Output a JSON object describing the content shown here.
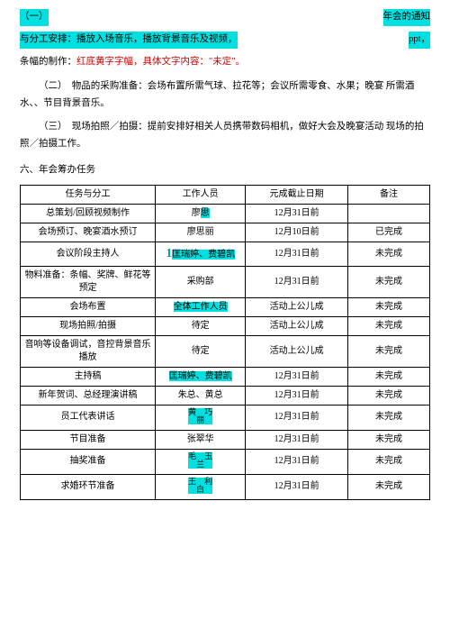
{
  "header": {
    "left": "（一）",
    "right": "年会的通知"
  },
  "line2": {
    "left": "与分工安排：播放入场音乐，播放背景音乐及视频，",
    "right": "ppt，"
  },
  "banner_line_a": "条幅的制作：",
  "banner_line_b": "红底黄字字幅，具体文字内容：\"未定\"。",
  "para2": "（二）　物品的采购准备：会场布置所需气球、拉花等；会议所需零食、水果；晚宴 所需酒水、、节目背景音乐。",
  "para3": "（三）　现场拍照／拍摄：提前安排好相关人员携带数码相机，做好大会及晚宴活动 现场的拍照／拍摄工作。",
  "section6": "六、年会筹办任务",
  "table": {
    "headers": [
      "任务与分工",
      "工作人员",
      "元成截止日期",
      "备注"
    ],
    "rows": [
      {
        "c1": "总策划/回顾视频制作",
        "c2_pre": "廖",
        "c2_hl": "思",
        "c3": "12月31日前",
        "c4": ""
      },
      {
        "c1": "会场预订、晚宴酒水预订",
        "c2": "廖思丽",
        "c3": "12月10日前",
        "c4": "已完成"
      },
      {
        "c1": "会议阶段主持人",
        "c2_num": "1",
        "c2_hl": "匡瑞婷、费碧凯",
        "c3": "12月31日前",
        "c4": "未完成"
      },
      {
        "c1": "物料准备：条幅、奖牌、鲜花等预定",
        "c2": "采购部",
        "c3": "12月31日前",
        "c4": "未完成"
      },
      {
        "c1": "会场布置",
        "c2_hl": "全体工作人员",
        "c3": "活动上公儿成",
        "c4": "未完成"
      },
      {
        "c1": "现场拍照/拍摄",
        "c2": "待定",
        "c3": "活动上公儿成",
        "c4": "未完成"
      },
      {
        "c1": "音响等设备调试，音控背景音乐播放",
        "c2": "待定",
        "c3": "活动上公儿成",
        "c4": "未完成"
      },
      {
        "c1": "主持稿",
        "c2_hl": "匡瑞婷、费碧凯",
        "c3": "12月31日前",
        "c4": "未完成"
      },
      {
        "c1": "新年贺词、总经理演讲稿",
        "c2": "朱总、黄总",
        "c3": "12月31日前",
        "c4": "未完成"
      },
      {
        "c1": "员工代表讲话",
        "c2_stack": "黄　巧\n丽",
        "c3": "12月31日前",
        "c4": "未完成"
      },
      {
        "c1": "节目准备",
        "c2": "张翠华",
        "c3": "12月31日前",
        "c4": "未完成"
      },
      {
        "c1": "抽奖准备",
        "c2_stack": "毛　玉\n兰",
        "c3": "12月31日前",
        "c4": "未完成"
      },
      {
        "c1": "求婚环节准备",
        "c2_stack": "王　利\n白",
        "c3": "12月31日前",
        "c4": "未完成"
      }
    ]
  }
}
